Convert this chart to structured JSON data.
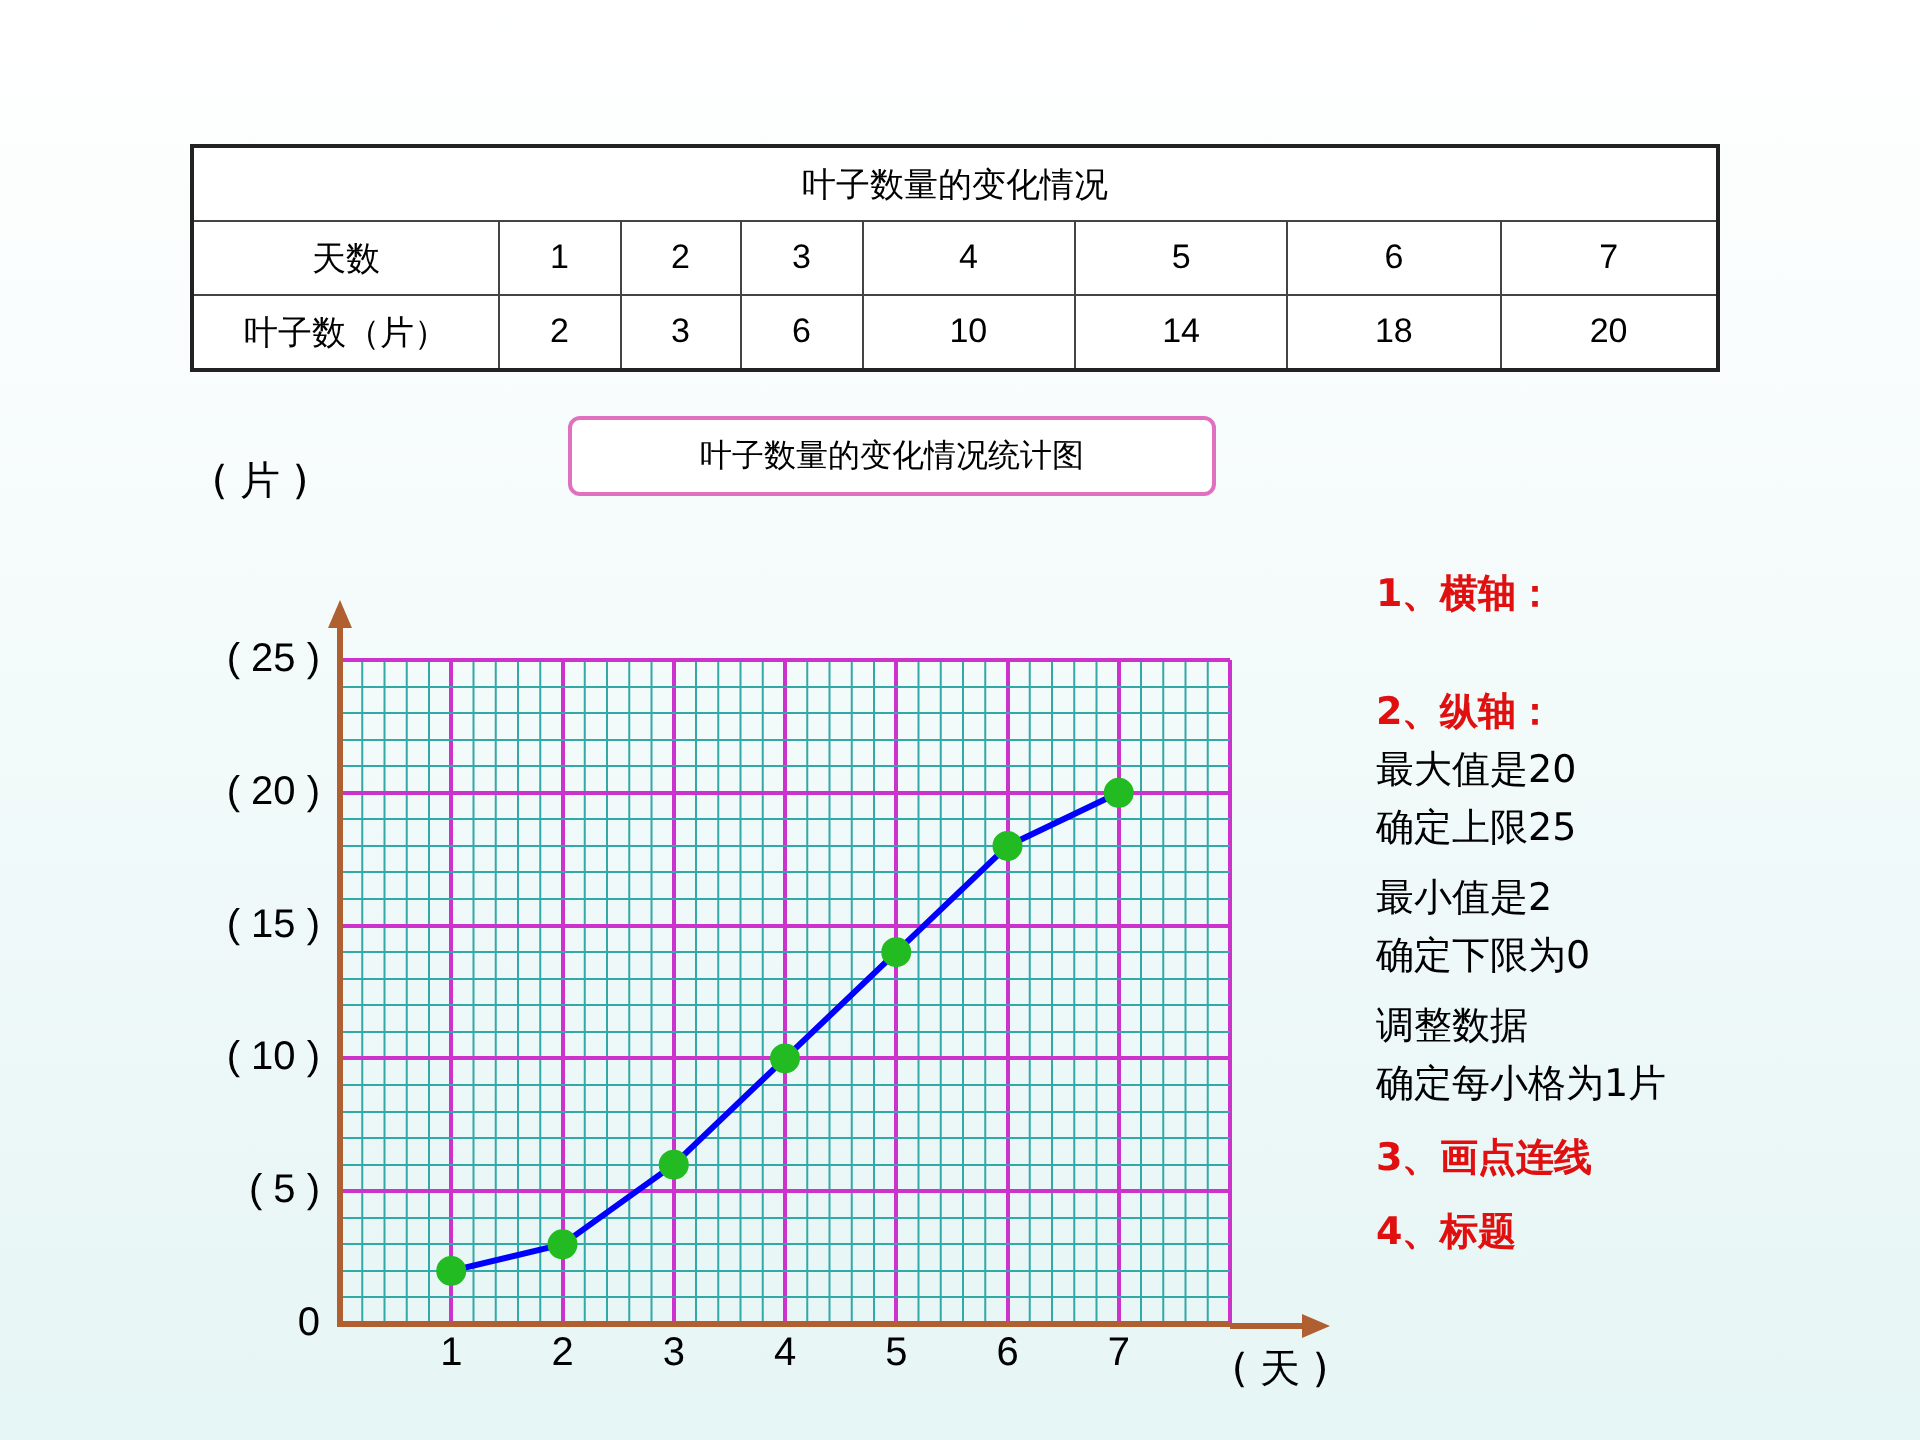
{
  "chart_data": {
    "type": "line",
    "title": "叶子数量的变化情况",
    "subtitle": "叶子数量的变化情况统计图",
    "xlabel": "( 天 )",
    "ylabel": "( 片 )",
    "categories": [
      "1",
      "2",
      "3",
      "4",
      "5",
      "6",
      "7"
    ],
    "series": [
      {
        "color": "#0000ff",
        "values": [
          2,
          3,
          6,
          10,
          14,
          18,
          20
        ]
      }
    ],
    "marker": "circle",
    "line_style": "solid",
    "grid": true,
    "legend": false,
    "ylim": [
      0,
      25
    ],
    "yticks": [
      0,
      {
        "value": 1,
        "label": null
      },
      {
        "value": 2,
        "label": null
      },
      {
        "value": 3,
        "label": null
      },
      {
        "value": 4,
        "label": null
      },
      {
        "value": 5,
        "label": "( 5 )"
      },
      {
        "value": 6,
        "label": null
      },
      {
        "value": 7,
        "label": null
      },
      {
        "value": 8,
        "label": null
      },
      {
        "value": 9,
        "label": null
      },
      {
        "value": 10,
        "label": "( 10 )"
      },
      {
        "value": 11,
        "label": null
      },
      {
        "value": 12,
        "label": null
      },
      {
        "value": 13,
        "label": null
      },
      {
        "value": 14,
        "label": null
      },
      {
        "value": 15,
        "label": "( 15 )"
      },
      {
        "value": 16,
        "label": null
      },
      {
        "value": 17,
        "label": null
      },
      {
        "value": 18,
        "label": null
      },
      {
        "value": 19,
        "label": null
      },
      {
        "value": 20,
        "label": "( 20 )"
      },
      {
        "value": 21,
        "label": null
      },
      {
        "value": 22,
        "label": null
      },
      {
        "value": 23,
        "label": null
      },
      {
        "value": 24,
        "label": null
      },
      {
        "value": 25,
        "label": "( 25 )"
      }
    ],
    "annotations": [
      "天数",
      "叶子数（片）",
      "2",
      "3",
      "6",
      "10",
      "14",
      "18",
      "20",
      "1、横轴：",
      "2、纵轴：",
      "最大值是20",
      "确定上限25",
      "最小值是2",
      "确定下限为0",
      "调整数据",
      "确定每小格为1片",
      "3、画点连线",
      "4、标题"
    ]
  }
}
